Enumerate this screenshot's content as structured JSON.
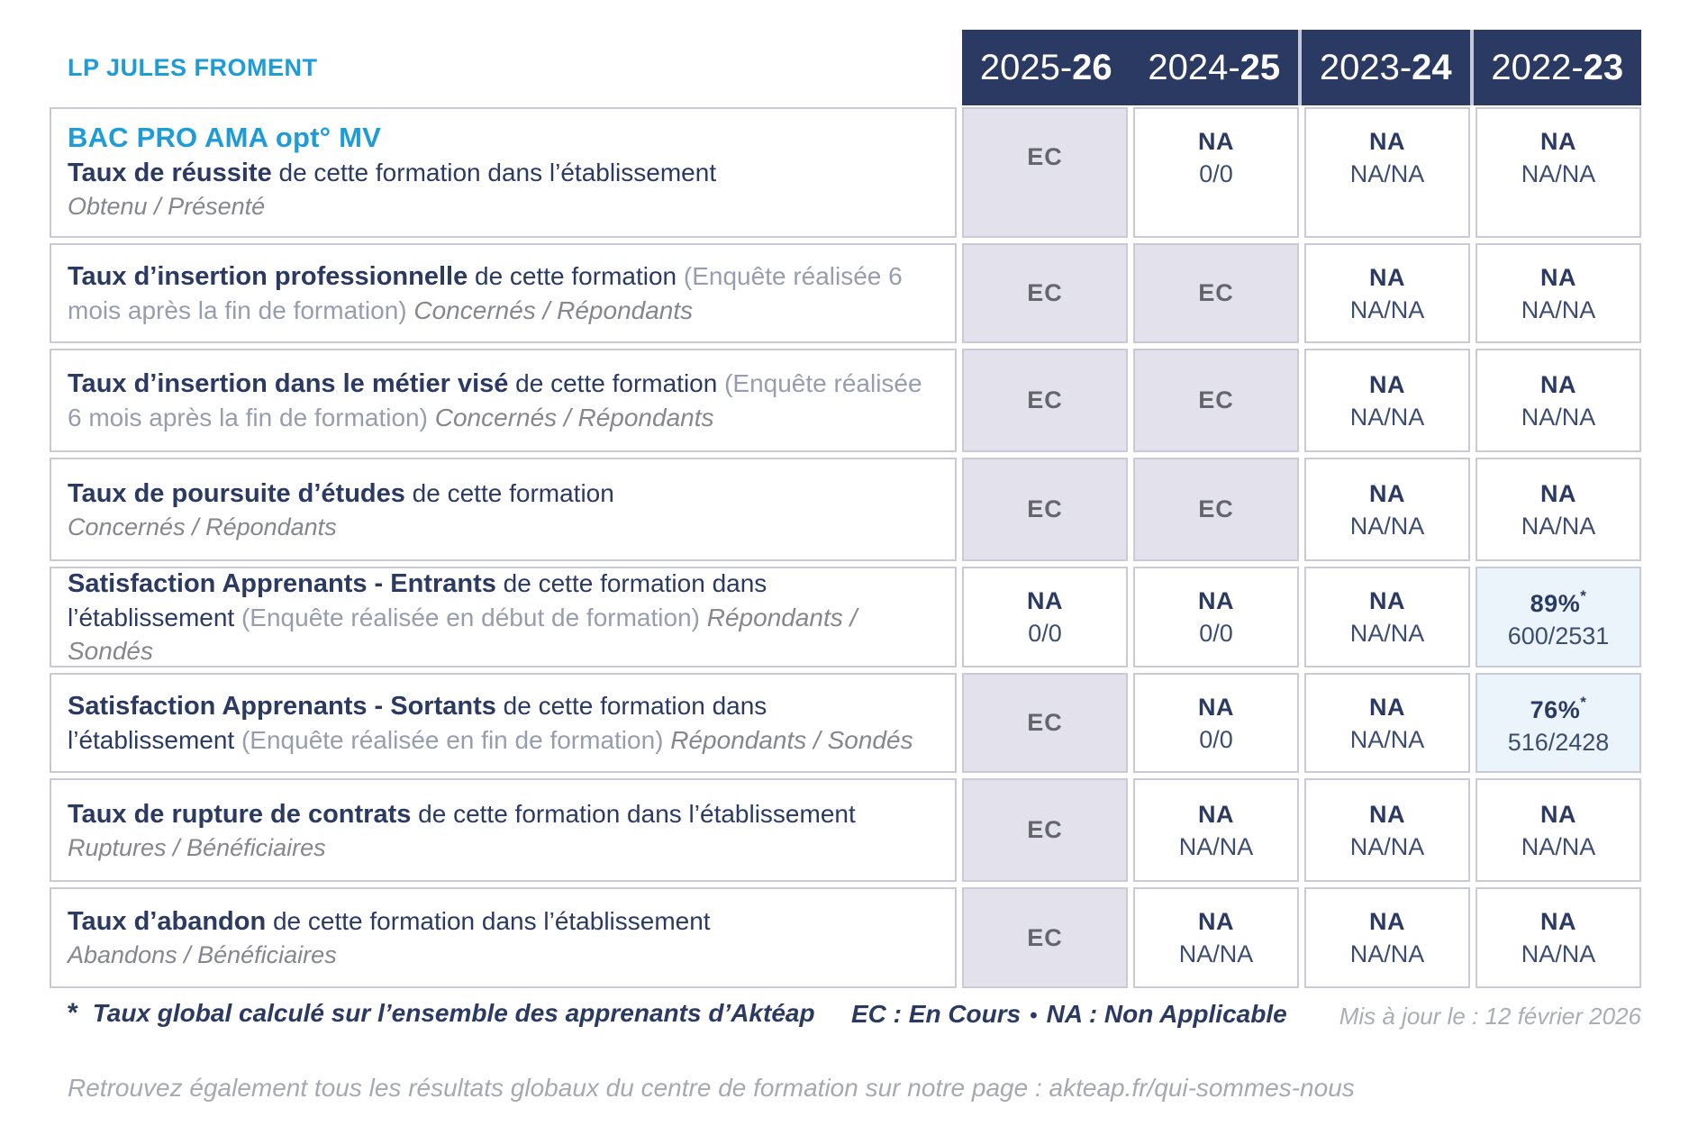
{
  "school_name": "LP JULES FROMENT",
  "header": {
    "years": [
      {
        "prefix": "2025-",
        "bold": "26"
      },
      {
        "prefix": "2024-",
        "bold": "25"
      },
      {
        "prefix": "2023-",
        "bold": "24"
      },
      {
        "prefix": "2022-",
        "bold": "23"
      }
    ]
  },
  "rows": [
    {
      "program": "BAC PRO AMA opt° MV",
      "title": "Taux de réussite",
      "desc": " de cette formation dans l’établissement",
      "paren": "",
      "inline_note": "",
      "block_note": "Obtenu / Présenté",
      "cells": [
        {
          "type": "ec",
          "top": "EC",
          "bottom": ""
        },
        {
          "type": "na",
          "top": "NA",
          "bottom": "0/0"
        },
        {
          "type": "na",
          "top": "NA",
          "bottom": "NA/NA"
        },
        {
          "type": "na",
          "top": "NA",
          "bottom": "NA/NA"
        }
      ]
    },
    {
      "program": "",
      "title": "Taux d’insertion professionnelle",
      "desc": " de cette formation ",
      "paren": "(Enquête réalisée 6 mois après la fin de formation) ",
      "inline_note": "Concernés / Répondants",
      "block_note": "",
      "cells": [
        {
          "type": "ec",
          "top": "EC",
          "bottom": ""
        },
        {
          "type": "ec",
          "top": "EC",
          "bottom": ""
        },
        {
          "type": "na",
          "top": "NA",
          "bottom": "NA/NA"
        },
        {
          "type": "na",
          "top": "NA",
          "bottom": "NA/NA"
        }
      ]
    },
    {
      "program": "",
      "title": "Taux d’insertion dans le métier visé",
      "desc": " de cette formation ",
      "paren": "(Enquête réalisée 6 mois après la fin de formation) ",
      "inline_note": "Concernés / Répondants",
      "block_note": "",
      "cells": [
        {
          "type": "ec",
          "top": "EC",
          "bottom": ""
        },
        {
          "type": "ec",
          "top": "EC",
          "bottom": ""
        },
        {
          "type": "na",
          "top": "NA",
          "bottom": "NA/NA"
        },
        {
          "type": "na",
          "top": "NA",
          "bottom": "NA/NA"
        }
      ]
    },
    {
      "program": "",
      "title": "Taux de poursuite d’études",
      "desc": " de cette formation",
      "paren": "",
      "inline_note": "",
      "block_note": "Concernés / Répondants",
      "cells": [
        {
          "type": "ec",
          "top": "EC",
          "bottom": ""
        },
        {
          "type": "ec",
          "top": "EC",
          "bottom": ""
        },
        {
          "type": "na",
          "top": "NA",
          "bottom": "NA/NA"
        },
        {
          "type": "na",
          "top": "NA",
          "bottom": "NA/NA"
        }
      ]
    },
    {
      "program": "",
      "title": "Satisfaction Apprenants - Entrants",
      "desc": " de cette formation dans l’établissement ",
      "paren": "(Enquête réalisée en début de formation) ",
      "inline_note": "Répondants / Sondés",
      "block_note": "",
      "cells": [
        {
          "type": "na",
          "top": "NA",
          "bottom": "0/0"
        },
        {
          "type": "na",
          "top": "NA",
          "bottom": "0/0"
        },
        {
          "type": "na",
          "top": "NA",
          "bottom": "NA/NA"
        },
        {
          "type": "pct",
          "top": "89%",
          "sup": "*",
          "bottom": "600/2531"
        }
      ]
    },
    {
      "program": "",
      "title": "Satisfaction Apprenants - Sortants",
      "desc": " de cette formation dans l’établissement ",
      "paren": "(Enquête réalisée en fin de formation) ",
      "inline_note": "Répondants / Sondés",
      "block_note": "",
      "cells": [
        {
          "type": "ec",
          "top": "EC",
          "bottom": ""
        },
        {
          "type": "na",
          "top": "NA",
          "bottom": "0/0"
        },
        {
          "type": "na",
          "top": "NA",
          "bottom": "NA/NA"
        },
        {
          "type": "pct",
          "top": "76%",
          "sup": "*",
          "bottom": "516/2428"
        }
      ]
    },
    {
      "program": "",
      "title": "Taux de rupture de contrats",
      "desc": " de cette formation dans l’établissement",
      "paren": "",
      "inline_note": "",
      "block_note": "Ruptures / Bénéficiaires",
      "cells": [
        {
          "type": "ec",
          "top": "EC",
          "bottom": ""
        },
        {
          "type": "na",
          "top": "NA",
          "bottom": "NA/NA"
        },
        {
          "type": "na",
          "top": "NA",
          "bottom": "NA/NA"
        },
        {
          "type": "na",
          "top": "NA",
          "bottom": "NA/NA"
        }
      ]
    },
    {
      "program": "",
      "title": "Taux d’abandon",
      "desc": " de cette formation dans l’établissement",
      "paren": "",
      "inline_note": "",
      "block_note": "Abandons / Bénéficiaires",
      "cells": [
        {
          "type": "ec",
          "top": "EC",
          "bottom": ""
        },
        {
          "type": "na",
          "top": "NA",
          "bottom": "NA/NA"
        },
        {
          "type": "na",
          "top": "NA",
          "bottom": "NA/NA"
        },
        {
          "type": "na",
          "top": "NA",
          "bottom": "NA/NA"
        }
      ]
    }
  ],
  "footer": {
    "star": "*",
    "footnote": "Taux global calculé sur l’ensemble des apprenants d’Aktéap",
    "legend_ec": "EC : En Cours",
    "legend_sep": "•",
    "legend_na": "NA : Non Applicable",
    "updated": "Mis à jour le : 12 février 2026",
    "bottom_text": "Retrouvez également tous les résultats globaux du centre de formation sur notre page : ",
    "bottom_link": "akteap.fr/qui-sommes-nous"
  },
  "colors": {
    "header_navy": "#2B3A63",
    "accent_blue": "#1E9CD8",
    "ec_cell_bg": "#E3E2EC",
    "pct_cell_bg": "#EBF4FA",
    "border": "#C9CAD6"
  }
}
